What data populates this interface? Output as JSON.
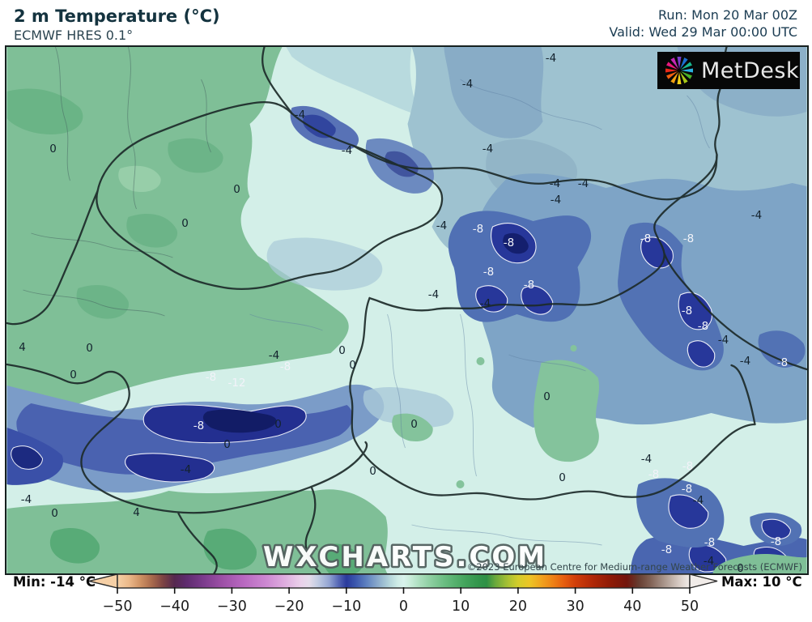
{
  "header": {
    "title": "2 m Temperature (°C)",
    "subtitle": "ECMWF HRES 0.1°",
    "run_label": "Run: Mon 20 Mar 00Z",
    "valid_label": "Valid: Wed 29 Mar 00:00 UTC"
  },
  "logo": {
    "text": "MetDesk"
  },
  "map": {
    "watermark": "WXCHARTS.COM",
    "copyright": "©2023 European Centre for Medium-range Weather Forecasts (ECMWF)"
  },
  "legend": {
    "min_label": "Min: -14 °C",
    "max_label": "Max: 10 °C"
  },
  "colors": {
    "label_dark": "#13222d",
    "label_white": "#f2f3f9",
    "border": "#1d2b2a",
    "land_green": "#7fbf97",
    "cold_navy": "#27379a",
    "pale_cyan": "#d3efe8",
    "steel_blue": "#9ec2d0"
  },
  "chart_data": {
    "type": "heatmap",
    "variable": "2 m Temperature",
    "units": "°C",
    "model": "ECMWF HRES 0.1°",
    "run": "Mon 20 Mar 00Z",
    "valid": "Wed 29 Mar 00:00 UTC",
    "min_c": -14,
    "max_c": 10,
    "colorbar": {
      "range": [
        -50,
        50
      ],
      "tick_values": [
        -50,
        -40,
        -30,
        -20,
        -10,
        0,
        10,
        20,
        30,
        40,
        50
      ],
      "tick_labels": [
        "−50",
        "−40",
        "−30",
        "−20",
        "−10",
        "0",
        "10",
        "20",
        "30",
        "40",
        "50"
      ],
      "stops": [
        [
          0,
          "#f6d0a6"
        ],
        [
          0.02,
          "#ecb98a"
        ],
        [
          0.04,
          "#cf9264"
        ],
        [
          0.06,
          "#a96a4c"
        ],
        [
          0.08,
          "#7c4343"
        ],
        [
          0.1,
          "#55284f"
        ],
        [
          0.12,
          "#5e2b6e"
        ],
        [
          0.15,
          "#7b3b8c"
        ],
        [
          0.18,
          "#9a4ea4"
        ],
        [
          0.22,
          "#b868c0"
        ],
        [
          0.26,
          "#cd88d2"
        ],
        [
          0.29,
          "#ddaade"
        ],
        [
          0.32,
          "#ead0ea"
        ],
        [
          0.335,
          "#e4dcea"
        ],
        [
          0.35,
          "#c2cce2"
        ],
        [
          0.37,
          "#93a4d2"
        ],
        [
          0.385,
          "#5a6cb8"
        ],
        [
          0.4,
          "#2a3a9c"
        ],
        [
          0.415,
          "#3a55ac"
        ],
        [
          0.435,
          "#5e80c0"
        ],
        [
          0.455,
          "#8aaacb"
        ],
        [
          0.475,
          "#b3d4da"
        ],
        [
          0.49,
          "#cfece6"
        ],
        [
          0.5,
          "#d9f2ec"
        ],
        [
          0.51,
          "#cceedd"
        ],
        [
          0.53,
          "#a8dcba"
        ],
        [
          0.55,
          "#88cc9c"
        ],
        [
          0.57,
          "#6cbe83"
        ],
        [
          0.59,
          "#55b06d"
        ],
        [
          0.61,
          "#41a25a"
        ],
        [
          0.63,
          "#33964c"
        ],
        [
          0.645,
          "#2e9045"
        ],
        [
          0.66,
          "#68a83c"
        ],
        [
          0.68,
          "#a2bf34"
        ],
        [
          0.7,
          "#d3cd2b"
        ],
        [
          0.72,
          "#ecc526"
        ],
        [
          0.74,
          "#f0a41e"
        ],
        [
          0.76,
          "#ee8316"
        ],
        [
          0.78,
          "#e65e0f"
        ],
        [
          0.8,
          "#d13f0a"
        ],
        [
          0.83,
          "#b02807"
        ],
        [
          0.86,
          "#901b05"
        ],
        [
          0.89,
          "#72150c"
        ],
        [
          0.91,
          "#663c30"
        ],
        [
          0.93,
          "#7f5f52"
        ],
        [
          0.95,
          "#a08a7f"
        ],
        [
          0.97,
          "#c3b4ab"
        ],
        [
          0.985,
          "#ddd2cc"
        ],
        [
          1,
          "#f1ece9"
        ]
      ]
    },
    "contour_labels": {
      "dark": [
        [
          -4,
          672,
          8
        ],
        [
          -4,
          569,
          40
        ],
        [
          -4,
          362,
          78
        ],
        [
          -4,
          420,
          122
        ],
        [
          -4,
          594,
          120
        ],
        [
          -4,
          677,
          163
        ],
        [
          -4,
          712,
          163
        ],
        [
          -4,
          678,
          183
        ],
        [
          -4,
          537,
          215
        ],
        [
          -4,
          926,
          202
        ],
        [
          -4,
          527,
          300
        ],
        [
          -4,
          591,
          311
        ],
        [
          -4,
          330,
          375
        ],
        [
          -4,
          885,
          356
        ],
        [
          -4,
          912,
          382
        ],
        [
          0,
          57,
          120
        ],
        [
          0,
          284,
          170
        ],
        [
          0,
          220,
          212
        ],
        [
          0,
          414,
          369
        ],
        [
          0,
          427,
          387
        ],
        [
          4,
          19,
          365
        ],
        [
          0,
          102,
          366
        ],
        [
          0,
          82,
          399
        ],
        [
          0,
          335,
          460
        ],
        [
          0,
          272,
          485
        ],
        [
          0,
          503,
          460
        ],
        [
          0,
          667,
          426
        ],
        [
          0,
          452,
          518
        ],
        [
          0,
          686,
          526
        ],
        [
          -4,
          790,
          503
        ],
        [
          -4,
          854,
          554
        ],
        [
          -4,
          24,
          553
        ],
        [
          0,
          59,
          570
        ],
        [
          4,
          160,
          569
        ],
        [
          -4,
          221,
          516
        ],
        [
          -4,
          867,
          629
        ],
        [
          0,
          906,
          638
        ]
      ],
      "white": [
        [
          -8,
          582,
          219
        ],
        [
          -8,
          620,
          236
        ],
        [
          -8,
          595,
          272
        ],
        [
          -8,
          645,
          288
        ],
        [
          -8,
          789,
          231
        ],
        [
          -8,
          842,
          231
        ],
        [
          -8,
          840,
          320
        ],
        [
          -8,
          860,
          339
        ],
        [
          -8,
          958,
          384
        ],
        [
          -8,
          252,
          402
        ],
        [
          -12,
          284,
          409
        ],
        [
          -8,
          344,
          389
        ],
        [
          -8,
          237,
          462
        ],
        [
          -8,
          799,
          522
        ],
        [
          -8,
          841,
          512
        ],
        [
          -8,
          840,
          540
        ],
        [
          -8,
          868,
          606
        ],
        [
          -8,
          950,
          605
        ],
        [
          -8,
          815,
          615
        ]
      ]
    }
  }
}
